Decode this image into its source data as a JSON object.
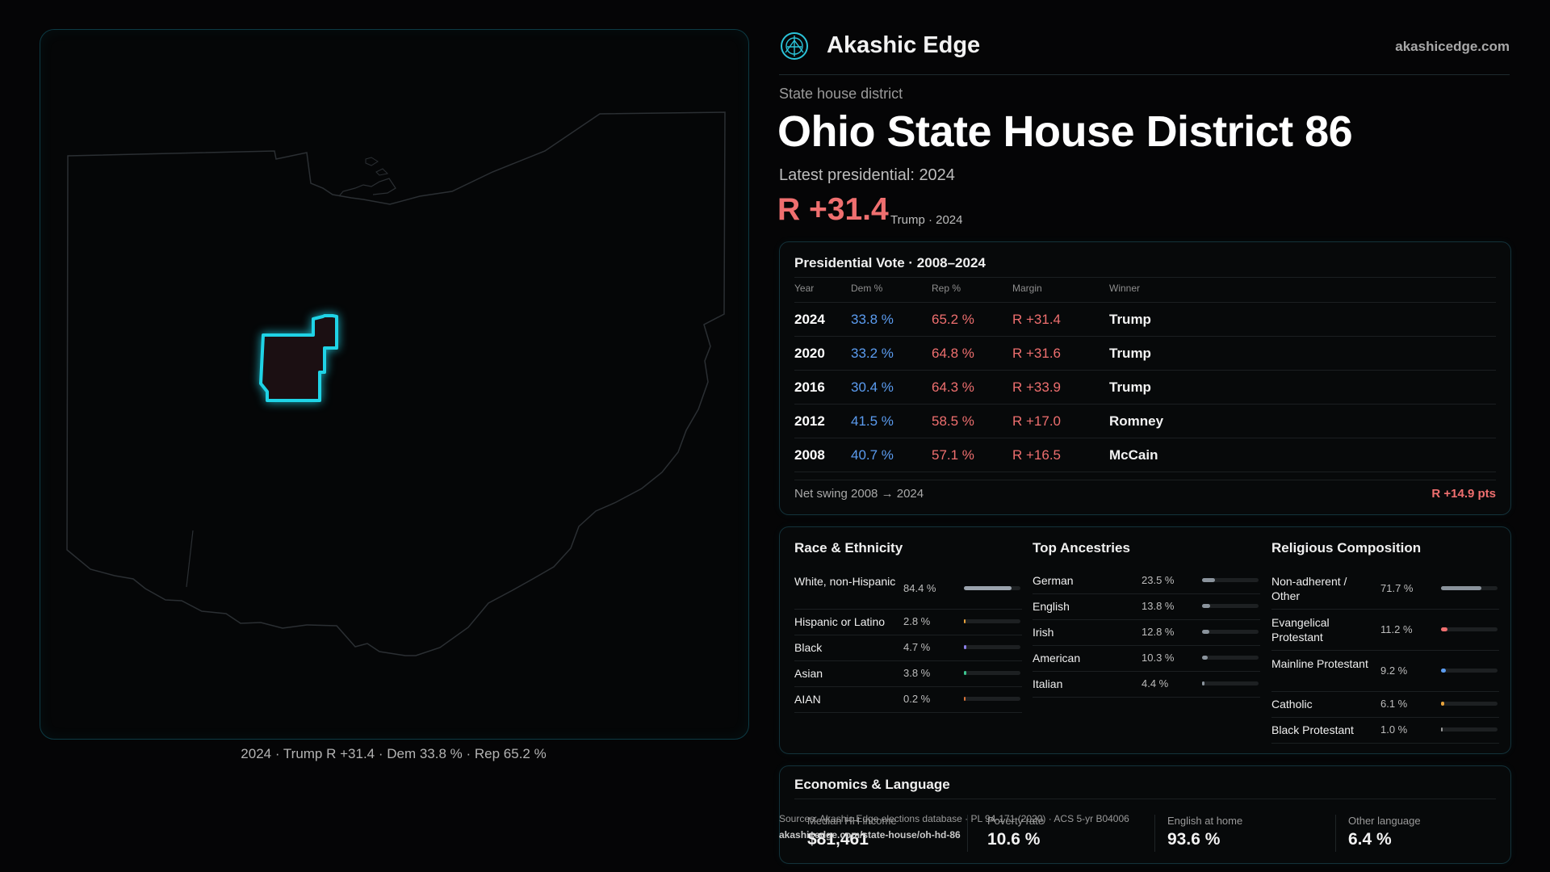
{
  "brand": {
    "name": "Akashic Edge",
    "site": "akashicedge.com"
  },
  "district": {
    "kicker": "State house district",
    "title": "Ohio State House District 86",
    "latest": "Latest presidential: 2024",
    "margin": "R +31.4",
    "margin_sub": "Trump · 2024"
  },
  "map": {
    "caption": "2024 · Trump R +31.4 · Dem 33.8 % · Rep 65.2 %"
  },
  "vote": {
    "title": "Presidential Vote · 2008–2024",
    "headers": {
      "year": "Year",
      "dem": "Dem %",
      "rep": "Rep %",
      "margin": "Margin",
      "winner": "Winner"
    },
    "rows": [
      {
        "year": "2024",
        "dem": "33.8 %",
        "rep": "65.2 %",
        "margin": "R +31.4",
        "winner": "Trump"
      },
      {
        "year": "2020",
        "dem": "33.2 %",
        "rep": "64.8 %",
        "margin": "R +31.6",
        "winner": "Trump"
      },
      {
        "year": "2016",
        "dem": "30.4 %",
        "rep": "64.3 %",
        "margin": "R +33.9",
        "winner": "Trump"
      },
      {
        "year": "2012",
        "dem": "41.5 %",
        "rep": "58.5 %",
        "margin": "R +17.0",
        "winner": "Romney"
      },
      {
        "year": "2008",
        "dem": "40.7 %",
        "rep": "57.1 %",
        "margin": "R +16.5",
        "winner": "McCain"
      }
    ],
    "swing_label": "Net swing 2008 → 2024",
    "swing_value": "R +14.9 pts"
  },
  "race": {
    "title": "Race & Ethnicity",
    "items": [
      {
        "label": "White, non-Hispanic",
        "value": "84.4 %",
        "fraction": 0.844,
        "color": "#9aa3ad"
      },
      {
        "label": "Hispanic or Latino",
        "value": "2.8 %",
        "fraction": 0.028,
        "color": "#e6a23c"
      },
      {
        "label": "Black",
        "value": "4.7 %",
        "fraction": 0.047,
        "color": "#8b7fe8"
      },
      {
        "label": "Asian",
        "value": "3.8 %",
        "fraction": 0.038,
        "color": "#3cc48f"
      },
      {
        "label": "AIAN",
        "value": "0.2 %",
        "fraction": 0.002,
        "color": "#d9743a"
      }
    ]
  },
  "ancestry": {
    "title": "Top Ancestries",
    "items": [
      {
        "label": "German",
        "value": "23.5 %",
        "fraction": 0.235,
        "color": "#8a939c"
      },
      {
        "label": "English",
        "value": "13.8 %",
        "fraction": 0.138,
        "color": "#8a939c"
      },
      {
        "label": "Irish",
        "value": "12.8 %",
        "fraction": 0.128,
        "color": "#8a939c"
      },
      {
        "label": "American",
        "value": "10.3 %",
        "fraction": 0.103,
        "color": "#8a939c"
      },
      {
        "label": "Italian",
        "value": "4.4 %",
        "fraction": 0.044,
        "color": "#8a939c"
      }
    ]
  },
  "religion": {
    "title": "Religious Composition",
    "items": [
      {
        "label": "Non-adherent / Other",
        "value": "71.7 %",
        "fraction": 0.717,
        "color": "#8a939c"
      },
      {
        "label": "Evangelical Protestant",
        "value": "11.2 %",
        "fraction": 0.112,
        "color": "#ef6f6f"
      },
      {
        "label": "Mainline Protestant",
        "value": "9.2 %",
        "fraction": 0.092,
        "color": "#5b9cf0"
      },
      {
        "label": "Catholic",
        "value": "6.1 %",
        "fraction": 0.061,
        "color": "#e6a23c"
      },
      {
        "label": "Black Protestant",
        "value": "1.0 %",
        "fraction": 0.01,
        "color": "#9a9a9a"
      }
    ]
  },
  "econ": {
    "title": "Economics & Language",
    "items": [
      {
        "label": "Median HH income",
        "value": "$81,461"
      },
      {
        "label": "Poverty rate",
        "value": "10.6 %"
      },
      {
        "label": "English at home",
        "value": "93.6 %"
      },
      {
        "label": "Other language",
        "value": "6.4 %"
      }
    ]
  },
  "source": {
    "line": "Sources: Akashic Edge elections database · PL 94-171 (2020) · ACS 5-yr B04006",
    "url": "akashicedge.com/state-house/oh-hd-86"
  }
}
